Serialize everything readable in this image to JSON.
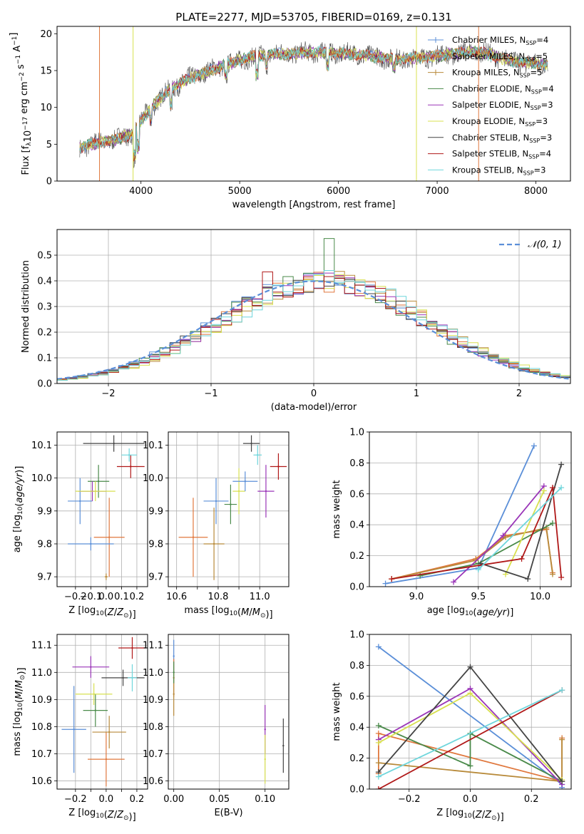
{
  "figure_title": "PLATE=2277, MJD=53705, FIBERID=0169, z=0.131",
  "models": [
    {
      "name": "Chabrier MILES",
      "nssp": "4",
      "color": "#5b8fd8"
    },
    {
      "name": "Salpeter MILES",
      "nssp": "5",
      "color": "#e0783e"
    },
    {
      "name": "Kroupa MILES",
      "nssp": "5",
      "color": "#b88a3a"
    },
    {
      "name": "Chabrier ELODIE",
      "nssp": "4",
      "color": "#4a8a4a"
    },
    {
      "name": "Salpeter ELODIE",
      "nssp": "3",
      "color": "#9a35b8"
    },
    {
      "name": "Kroupa ELODIE",
      "nssp": "3",
      "color": "#d8e050"
    },
    {
      "name": "Chabrier STELIB",
      "nssp": "3",
      "color": "#444444"
    },
    {
      "name": "Salpeter STELIB",
      "nssp": "4",
      "color": "#b01818"
    },
    {
      "name": "Kroupa STELIB",
      "nssp": "3",
      "color": "#6fd6dc"
    }
  ],
  "chart_data": [
    {
      "type": "line",
      "id": "spectrum",
      "xlabel": "wavelength [Angstrom, rest frame]",
      "ylabel": "Flux [f_λ10^-17 erg cm^-2 s^-1 A^-1]",
      "xlim": [
        3150,
        8350
      ],
      "ylim": [
        0,
        21
      ],
      "xticks": [
        4000,
        5000,
        6000,
        7000,
        8000
      ],
      "yticks": [
        0,
        5,
        10,
        15,
        20
      ],
      "continuum": {
        "x": [
          3380,
          3500,
          3700,
          3900,
          4000,
          4100,
          4300,
          4500,
          4700,
          4900,
          5100,
          5300,
          5500,
          5800,
          6200,
          6600,
          7000,
          7400,
          7800,
          8100
        ],
        "y": [
          4.5,
          5.0,
          5.5,
          6.3,
          8.0,
          10.0,
          12.5,
          14.0,
          15.0,
          16.0,
          16.8,
          17.2,
          17.3,
          17.5,
          17.2,
          16.5,
          17.0,
          17.6,
          16.2,
          15.8
        ]
      },
      "legend_position": "right"
    },
    {
      "type": "histogram",
      "id": "residuals",
      "xlabel": "(data-model)/error",
      "ylabel": "Normed distribution",
      "xlim": [
        -2.5,
        2.5
      ],
      "ylim": [
        0,
        0.6
      ],
      "xticks": [
        -2,
        -1,
        0,
        1,
        2
      ],
      "yticks": [
        0.0,
        0.1,
        0.2,
        0.3,
        0.4,
        0.5
      ],
      "reference_label": "𝒩(0, 1)",
      "reference_color": "#5b8fd8",
      "bin_width": 0.1,
      "grid": true
    },
    {
      "type": "scatter",
      "id": "age-vs-Z",
      "xlabel": "Z [log10(Z/Z☉)]",
      "ylabel": "age [log10(age/yr)]",
      "xlim": [
        -0.32,
        0.27
      ],
      "ylim": [
        9.67,
        10.14
      ],
      "xticks": [
        -0.2,
        -0.1,
        0.0,
        0.1,
        0.2
      ],
      "yticks": [
        9.7,
        9.8,
        9.9,
        10.0,
        10.1
      ],
      "points": [
        {
          "x": -0.17,
          "y": 9.93,
          "xerr": 0.08,
          "yerr": 0.07
        },
        {
          "x": 0.02,
          "y": 9.82,
          "xerr": 0.1,
          "yerr": 0.12
        },
        {
          "x": 0.0,
          "y": 9.7,
          "xerr": 0.01,
          "yerr": 0.01
        },
        {
          "x": -0.05,
          "y": 9.99,
          "xerr": 0.07,
          "yerr": 0.05
        },
        {
          "x": -0.09,
          "y": 9.96,
          "xerr": 0.09,
          "yerr": 0.03
        },
        {
          "x": -0.07,
          "y": 9.96,
          "xerr": 0.13,
          "yerr": 0.03
        },
        {
          "x": 0.05,
          "y": 10.105,
          "xerr": 0.2,
          "yerr": 0.025
        },
        {
          "x": 0.16,
          "y": 10.035,
          "xerr": 0.09,
          "yerr": 0.035
        },
        {
          "x": 0.15,
          "y": 10.07,
          "xerr": 0.05,
          "yerr": 0.02
        },
        {
          "x": -0.1,
          "y": 9.8,
          "xerr": 0.15,
          "yerr": 0.02
        }
      ]
    },
    {
      "type": "scatter",
      "id": "age-vs-mass",
      "xlabel": "mass [log10(M/M☉)]",
      "ylabel": "",
      "xlim": [
        10.56,
        11.14
      ],
      "ylim": [
        9.67,
        10.14
      ],
      "xticks": [
        10.6,
        10.7,
        10.8,
        10.9,
        11.0
      ],
      "tick_labels": [
        "10.6",
        "",
        "10.8",
        "",
        "11.0"
      ],
      "yticks": [
        9.7,
        9.8,
        9.9,
        10.0,
        10.1
      ],
      "points": [
        {
          "x": 10.79,
          "y": 9.93,
          "xerr": 0.06,
          "yerr": 0.07
        },
        {
          "x": 10.68,
          "y": 9.82,
          "xerr": 0.07,
          "yerr": 0.12
        },
        {
          "x": 10.78,
          "y": 9.8,
          "xerr": 0.05,
          "yerr": 0.11
        },
        {
          "x": 10.86,
          "y": 9.92,
          "xerr": 0.03,
          "yerr": 0.06
        },
        {
          "x": 11.03,
          "y": 9.96,
          "xerr": 0.04,
          "yerr": 0.08
        },
        {
          "x": 10.9,
          "y": 9.96,
          "xerr": 0.03,
          "yerr": 0.07
        },
        {
          "x": 10.96,
          "y": 10.105,
          "xerr": 0.04,
          "yerr": 0.025
        },
        {
          "x": 11.09,
          "y": 10.035,
          "xerr": 0.04,
          "yerr": 0.04
        },
        {
          "x": 10.99,
          "y": 10.07,
          "xerr": 0.02,
          "yerr": 0.03
        },
        {
          "x": 10.93,
          "y": 9.99,
          "xerr": 0.06,
          "yerr": 0.03
        }
      ]
    },
    {
      "type": "line",
      "id": "weight-vs-age",
      "xlabel": "age [log10(age/yr)]",
      "ylabel": "mass weight",
      "xlim": [
        8.62,
        10.25
      ],
      "ylim": [
        0,
        1
      ],
      "xticks": [
        9.0,
        9.5,
        10.0
      ],
      "yticks": [
        0.0,
        0.2,
        0.4,
        0.6,
        0.8,
        1.0
      ],
      "series": [
        {
          "x": [
            8.75,
            9.5,
            9.95
          ],
          "y": [
            0.02,
            0.12,
            0.91
          ]
        },
        {
          "x": [
            8.8,
            9.48,
            9.72,
            10.05,
            10.1
          ],
          "y": [
            0.05,
            0.18,
            0.33,
            0.37,
            0.09
          ]
        },
        {
          "x": [
            8.8,
            9.48,
            9.72,
            10.05,
            10.1
          ],
          "y": [
            0.05,
            0.17,
            0.32,
            0.38,
            0.08
          ]
        },
        {
          "x": [
            9.03,
            9.5,
            10.1
          ],
          "y": [
            0.07,
            0.15,
            0.41
          ]
        },
        {
          "x": [
            9.3,
            9.7,
            10.03
          ],
          "y": [
            0.03,
            0.33,
            0.65
          ]
        },
        {
          "x": [
            9.72,
            10.03
          ],
          "y": [
            0.08,
            0.62
          ]
        },
        {
          "x": [
            9.52,
            9.9,
            10.17
          ],
          "y": [
            0.15,
            0.05,
            0.79
          ]
        },
        {
          "x": [
            8.8,
            9.85,
            10.1,
            10.17
          ],
          "y": [
            0.05,
            0.18,
            0.64,
            0.06
          ]
        },
        {
          "x": [
            9.5,
            10.17
          ],
          "y": [
            0.11,
            0.64
          ]
        }
      ]
    },
    {
      "type": "scatter",
      "id": "mass-vs-Z",
      "xlabel": "Z [log10(Z/Z☉)]",
      "ylabel": "mass [log10(M/M☉)]",
      "xlim": [
        -0.32,
        0.27
      ],
      "ylim": [
        10.57,
        11.14
      ],
      "xticks": [
        -0.2,
        -0.1,
        0.0,
        0.1,
        0.2
      ],
      "tick_labels": [
        "−0.2",
        "",
        "0.0",
        "",
        "0.2"
      ],
      "yticks": [
        10.6,
        10.7,
        10.8,
        10.9,
        11.0,
        11.1
      ],
      "points": [
        {
          "x": -0.21,
          "y": 10.79,
          "xerr": 0.08,
          "yerr": 0.16
        },
        {
          "x": 0.0,
          "y": 10.68,
          "xerr": 0.12,
          "yerr": 0.1
        },
        {
          "x": 0.02,
          "y": 10.78,
          "xerr": 0.11,
          "yerr": 0.06
        },
        {
          "x": -0.07,
          "y": 10.86,
          "xerr": 0.08,
          "yerr": 0.06
        },
        {
          "x": -0.1,
          "y": 11.02,
          "xerr": 0.12,
          "yerr": 0.04
        },
        {
          "x": -0.08,
          "y": 10.92,
          "xerr": 0.12,
          "yerr": 0.04
        },
        {
          "x": 0.11,
          "y": 10.98,
          "xerr": 0.14,
          "yerr": 0.03
        },
        {
          "x": 0.17,
          "y": 11.09,
          "xerr": 0.09,
          "yerr": 0.04
        },
        {
          "x": 0.17,
          "y": 10.98,
          "xerr": 0.03,
          "yerr": 0.05
        }
      ]
    },
    {
      "type": "scatter",
      "id": "mass-vs-ebv",
      "xlabel": "E(B-V)",
      "ylabel": "",
      "xlim": [
        -0.006,
        0.126
      ],
      "ylim": [
        10.57,
        11.14
      ],
      "xticks": [
        0.0,
        0.05,
        0.1
      ],
      "tick_labels": [
        "0.00",
        "0.05",
        "0.10"
      ],
      "yticks": [
        10.6,
        10.7,
        10.8,
        10.9,
        11.0,
        11.1
      ],
      "points": [
        {
          "x": 0.0,
          "y": 11.06,
          "yerr": 0.06
        },
        {
          "x": 0.0,
          "y": 10.98,
          "yerr": 0.07
        },
        {
          "x": 0.0,
          "y": 10.92,
          "yerr": 0.08
        },
        {
          "x": 0.0,
          "y": 11.0,
          "yerr": 0.04
        },
        {
          "x": 0.1,
          "y": 10.79,
          "yerr": 0.09
        },
        {
          "x": 0.1,
          "y": 10.68,
          "yerr": 0.09
        },
        {
          "x": 0.12,
          "y": 10.73,
          "yerr": 0.1
        }
      ]
    },
    {
      "type": "line",
      "id": "weight-vs-Z",
      "xlabel": "Z [log10(Z/Z☉)]",
      "ylabel": "mass weight",
      "xlim": [
        -0.33,
        0.33
      ],
      "ylim": [
        0,
        1
      ],
      "xticks": [
        -0.2,
        0.0,
        0.2
      ],
      "tick_labels": [
        "−0.2",
        "0.0",
        "0.2"
      ],
      "yticks": [
        0.0,
        0.2,
        0.4,
        0.6,
        0.8,
        1.0
      ],
      "series": [
        {
          "x": [
            -0.3,
            0.3,
            0.3
          ],
          "y": [
            0.92,
            0.03,
            0.01
          ]
        },
        {
          "x": [
            -0.3,
            -0.3,
            0.3,
            0.3
          ],
          "y": [
            0.1,
            0.36,
            0.05,
            0.33
          ]
        },
        {
          "x": [
            -0.3,
            0.3,
            0.3
          ],
          "y": [
            0.17,
            0.05,
            0.32
          ]
        },
        {
          "x": [
            -0.3,
            0.0,
            0.0,
            0.3
          ],
          "y": [
            0.41,
            0.15,
            0.36,
            0.05
          ]
        },
        {
          "x": [
            -0.3,
            0.0,
            0.3
          ],
          "y": [
            0.32,
            0.65,
            0.03
          ]
        },
        {
          "x": [
            -0.3,
            0.0,
            0.3
          ],
          "y": [
            0.3,
            0.62,
            0.06
          ]
        },
        {
          "x": [
            -0.3,
            0.0,
            0.3
          ],
          "y": [
            0.11,
            0.79,
            0.05
          ]
        },
        {
          "x": [
            -0.3,
            0.3
          ],
          "y": [
            0.0,
            0.64
          ]
        },
        {
          "x": [
            -0.3,
            0.3
          ],
          "y": [
            0.08,
            0.64
          ]
        }
      ]
    }
  ]
}
